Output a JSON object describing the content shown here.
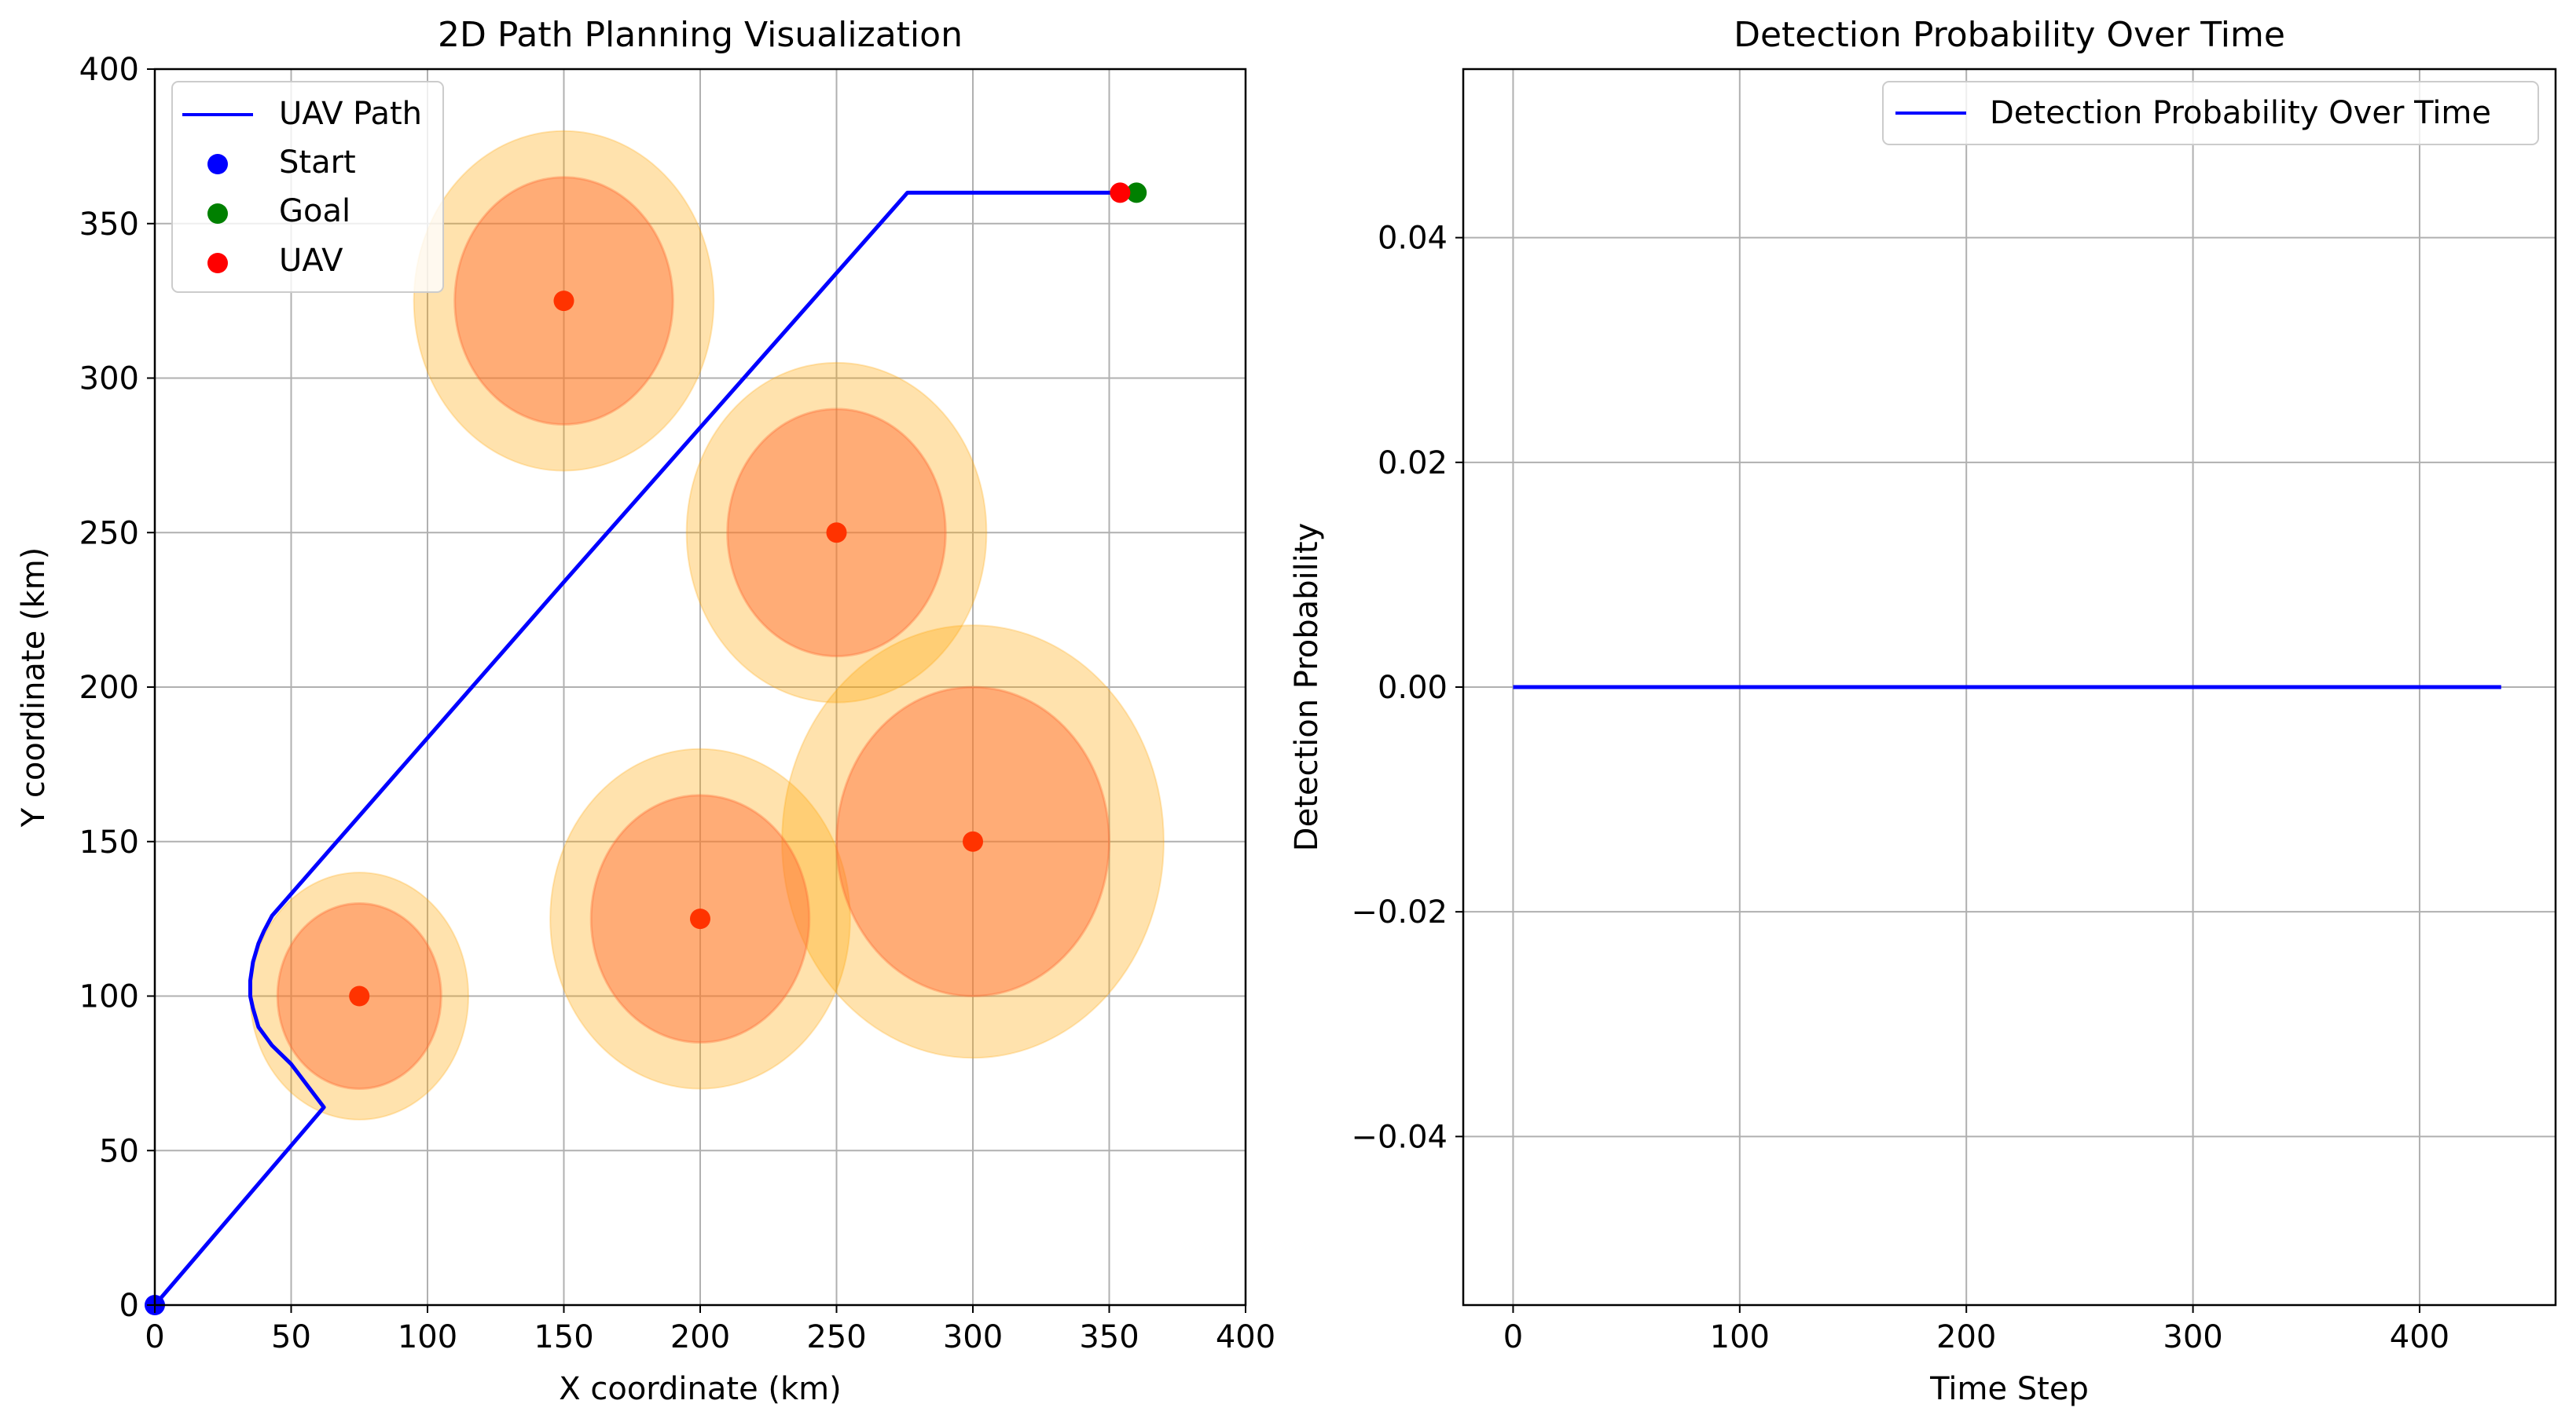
{
  "figure": {
    "background": "#ffffff"
  },
  "chart_data": [
    {
      "type": "line",
      "title": "2D Path Planning Visualization",
      "xlabel": "X coordinate (km)",
      "ylabel": "Y coordinate (km)",
      "xlim": [
        0,
        400
      ],
      "ylim": [
        0,
        400
      ],
      "xticks": [
        0,
        50,
        100,
        150,
        200,
        250,
        300,
        350,
        400
      ],
      "yticks": [
        0,
        50,
        100,
        150,
        200,
        250,
        300,
        350,
        400
      ],
      "grid": true,
      "legend_position": "top-left",
      "series": [
        {
          "name": "UAV Path",
          "color": "#0000ff",
          "x": [
            0,
            62,
            50,
            43,
            38,
            36,
            35,
            35,
            36,
            38,
            40,
            43,
            150,
            276,
            355
          ],
          "y": [
            0,
            64,
            78,
            84,
            90,
            96,
            100,
            105,
            111,
            117,
            121,
            126,
            234,
            360,
            360
          ]
        }
      ],
      "points": [
        {
          "name": "Start",
          "color": "#0000ff",
          "x": 0,
          "y": 0
        },
        {
          "name": "Goal",
          "color": "#008000",
          "x": 360,
          "y": 360
        },
        {
          "name": "UAV",
          "color": "#ff0000",
          "x": 354,
          "y": 360
        }
      ],
      "radars": [
        {
          "name": "Radar",
          "x": 75,
          "y": 100,
          "inner_r": 30,
          "outer_r": 40
        },
        {
          "name": "Radar",
          "x": 150,
          "y": 325,
          "inner_r": 40,
          "outer_r": 55
        },
        {
          "name": "Radar",
          "x": 250,
          "y": 250,
          "inner_r": 40,
          "outer_r": 55
        },
        {
          "name": "Radar",
          "x": 200,
          "y": 125,
          "inner_r": 40,
          "outer_r": 55
        },
        {
          "name": "Radar",
          "x": 300,
          "y": 150,
          "inner_r": 50,
          "outer_r": 70
        }
      ],
      "radar_colors": {
        "outer": "#ffa500",
        "inner": "#ff6a33",
        "center": "#ff3300"
      }
    },
    {
      "type": "line",
      "title": "Detection Probability Over Time",
      "xlabel": "Time Step",
      "ylabel": "Detection Probability",
      "xlim": [
        -22,
        460
      ],
      "ylim": [
        -0.055,
        0.055
      ],
      "xticks": [
        0,
        100,
        200,
        300,
        400
      ],
      "yticks": [
        -0.04,
        -0.02,
        0.0,
        0.02,
        0.04
      ],
      "ytick_labels": [
        "−0.04",
        "−0.02",
        "0.00",
        "0.02",
        "0.04"
      ],
      "grid": true,
      "legend_position": "top-right",
      "series": [
        {
          "name": "Detection Probability Over Time",
          "color": "#0000ff",
          "x": [
            0,
            436
          ],
          "y": [
            0,
            0
          ]
        }
      ]
    }
  ]
}
